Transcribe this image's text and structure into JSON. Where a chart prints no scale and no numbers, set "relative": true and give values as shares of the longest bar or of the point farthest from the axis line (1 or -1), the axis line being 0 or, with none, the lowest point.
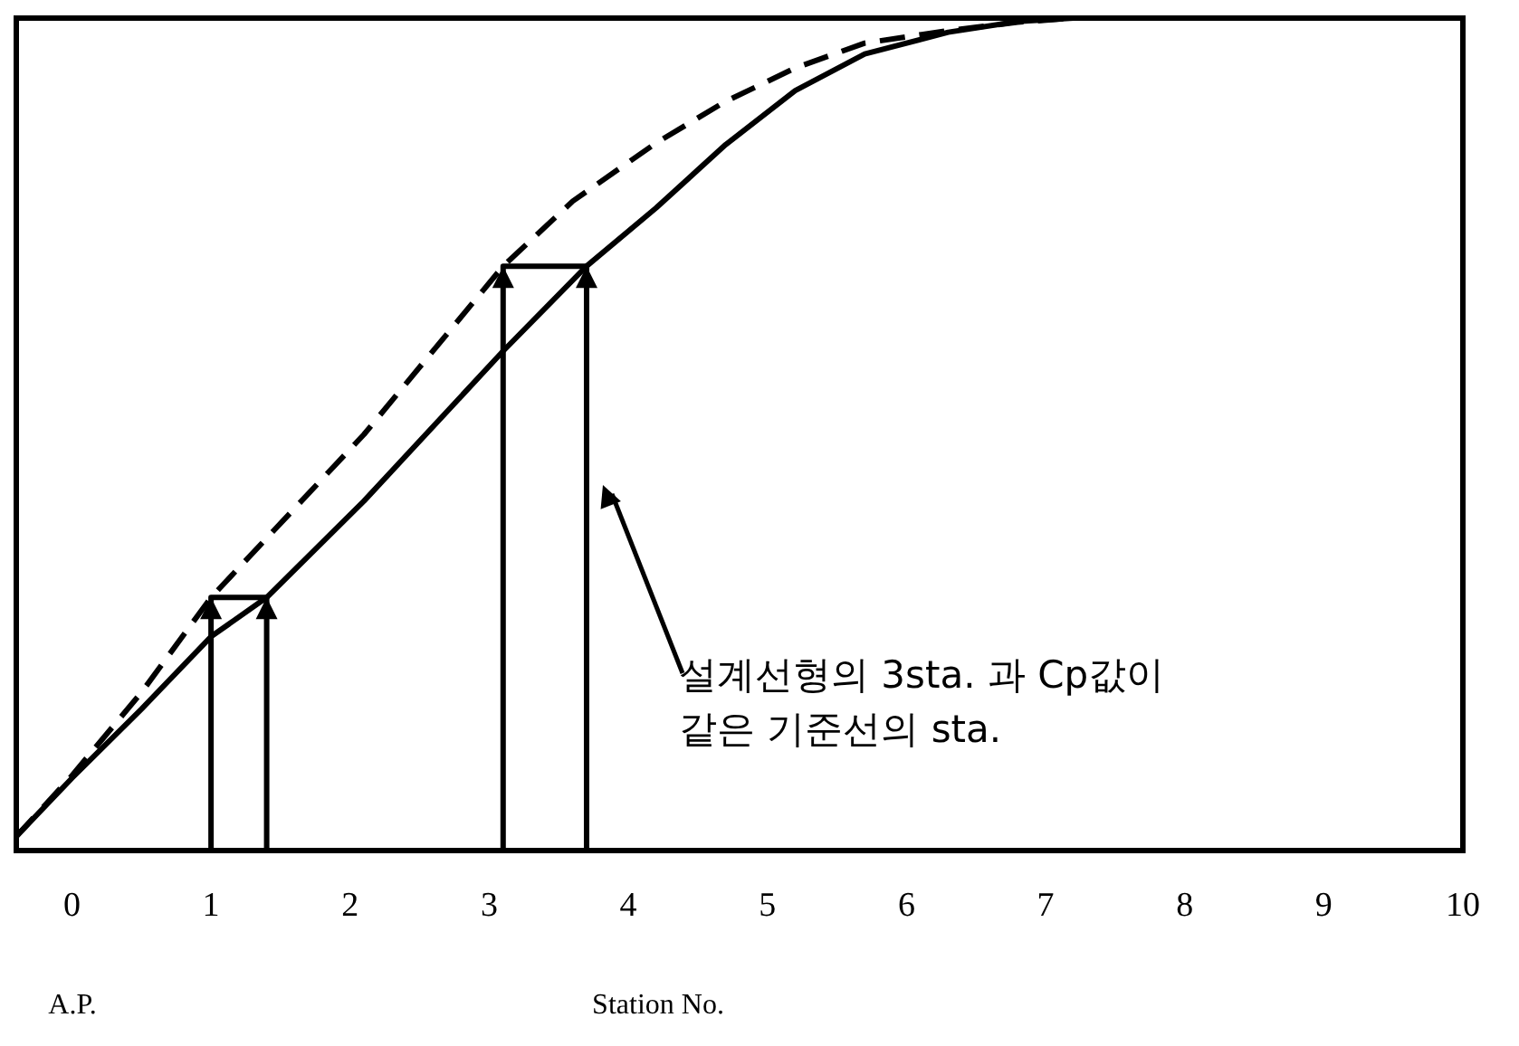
{
  "chart_data": {
    "type": "line",
    "relative": true,
    "xlabel": "Station No.",
    "xlim": [
      -0.4,
      10
    ],
    "xticks": [
      0,
      1,
      2,
      3,
      4,
      5,
      6,
      7,
      8,
      9,
      10
    ],
    "series": [
      {
        "color": "#000000",
        "line_style": "solid",
        "x": [
          -0.4,
          0,
          0.5,
          1.0,
          1.4,
          2.1,
          3.1,
          3.7,
          4.2,
          4.7,
          5.2,
          5.7,
          6.3,
          6.8,
          7.2
        ],
        "values": [
          0.017,
          0.087,
          0.17,
          0.257,
          0.304,
          0.42,
          0.6,
          0.702,
          0.772,
          0.848,
          0.913,
          0.957,
          0.983,
          0.996,
          1
        ]
      },
      {
        "color": "#000000",
        "line_style": "dashed",
        "x": [
          -0.4,
          0,
          0.5,
          1.0,
          2.1,
          3.1,
          3.6,
          4.2,
          4.7,
          5.2,
          5.7,
          6.3,
          6.8,
          7.2
        ],
        "values": [
          0.017,
          0.09,
          0.19,
          0.304,
          0.5,
          0.702,
          0.78,
          0.85,
          0.9,
          0.94,
          0.97,
          0.985,
          0.995,
          1
        ]
      },
      {
        "color": "#000000",
        "line_style": "solid",
        "x": [
          1.0,
          1.0,
          1.4,
          1.4
        ],
        "values": [
          0,
          0.304,
          0.304,
          0
        ]
      },
      {
        "color": "#000000",
        "line_style": "solid",
        "x": [
          3.1,
          3.1,
          3.7,
          3.7
        ],
        "values": [
          0,
          0.702,
          0.702,
          0
        ]
      }
    ],
    "annotations": [
      "설계선형의 3sta. 과 Cp값이\n같은 기준선의 sta.",
      "A.P."
    ]
  }
}
